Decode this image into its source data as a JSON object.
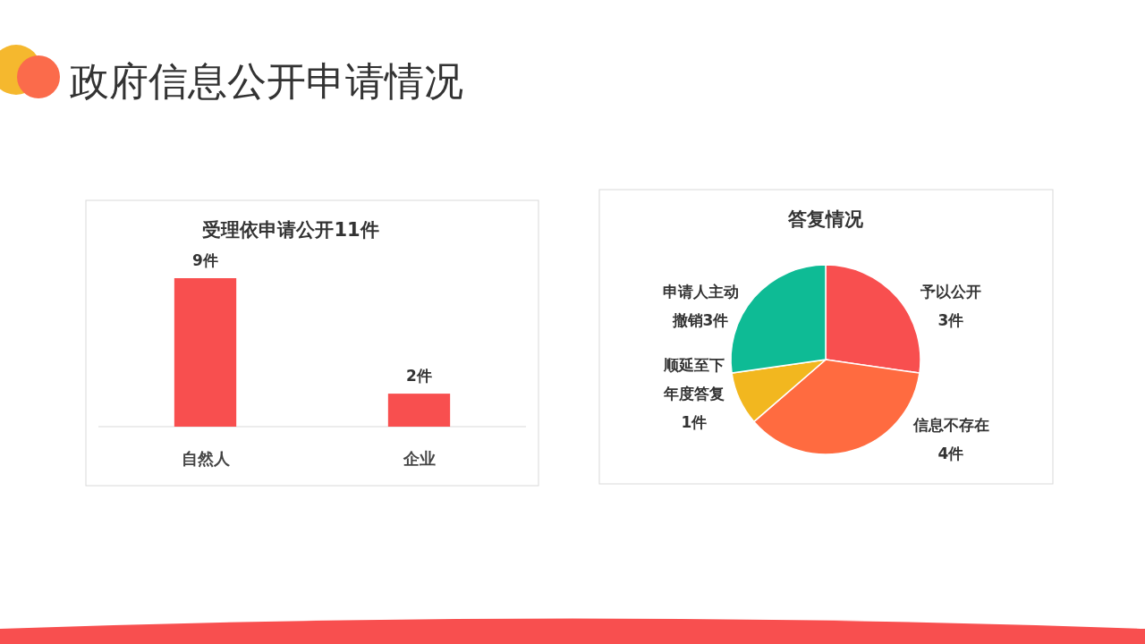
{
  "chart_data": [
    {
      "type": "other",
      "title": "政府信息公开申请情况"
    },
    {
      "type": "bar",
      "title": "受理依申请公开11件",
      "categories": [
        "自然人",
        "企业"
      ],
      "values": [
        9,
        2
      ],
      "value_labels": [
        "9件",
        "2件"
      ],
      "color": "#f84f4f"
    },
    {
      "type": "pie",
      "title": "答复情况",
      "categories": [
        "予以公开",
        "信息不存在",
        "顺延至下年度答复",
        "申请人主动撤销"
      ],
      "values": [
        3,
        4,
        1,
        3
      ],
      "value_labels": [
        "3件",
        "4件",
        "1件",
        "3件"
      ],
      "colors": [
        "#f84f4f",
        "#ff6b40",
        "#f2b71f",
        "#0ebb95"
      ]
    }
  ]
}
